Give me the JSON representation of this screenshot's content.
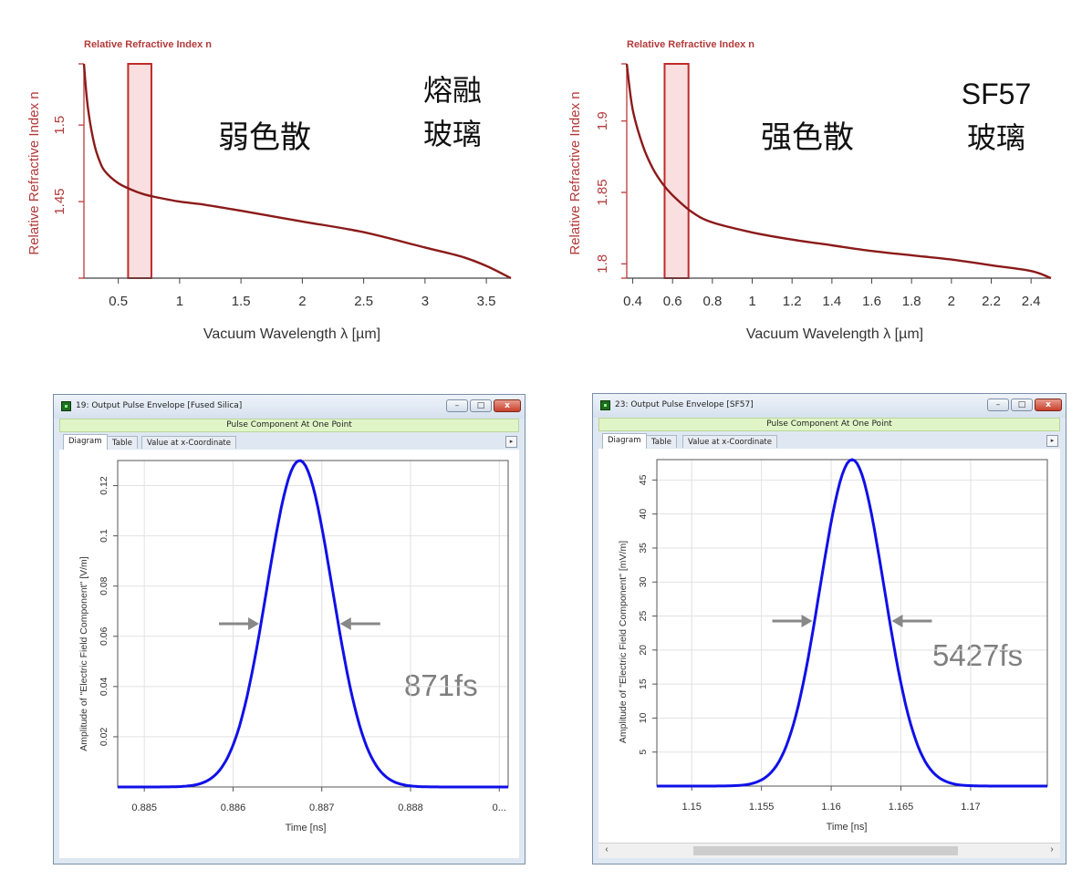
{
  "panels": {
    "top_left": {
      "chart_title": "Relative Refractive Index n",
      "ylabel": "Relative Refractive Index n",
      "xlabel": "Vacuum Wavelength λ [µm]",
      "annotation": "弱色散",
      "material_line1": "熔融",
      "material_line2": "玻璃"
    },
    "top_right": {
      "chart_title": "Relative Refractive Index n",
      "ylabel": "Relative Refractive Index n",
      "xlabel": "Vacuum Wavelength λ [µm]",
      "annotation": "强色散",
      "material_line1": "SF57",
      "material_line2": "玻璃"
    },
    "bottom_left": {
      "window_title": "19: Output Pulse Envelope [Fused Silica]",
      "subtitle": "Pulse Component At One Point",
      "tabs": [
        "Diagram",
        "Table",
        "Value at x-Coordinate"
      ],
      "ylabel": "Amplitude of \"Electric Field Component\" [V/m]",
      "xlabel": "Time [ns]",
      "width_label": "871fs"
    },
    "bottom_right": {
      "window_title": "23: Output Pulse Envelope [SF57]",
      "subtitle": "Pulse Component At One Point",
      "tabs": [
        "Diagram",
        "Table",
        "Value at x-Coordinate"
      ],
      "ylabel": "Amplitude of \"Electric Field Component\" [mV/m]",
      "xlabel": "Time [ns]",
      "width_label": "5427fs"
    }
  },
  "window_buttons": {
    "minimize": "–",
    "maximize": "□",
    "close": "x"
  },
  "scroll_arrows": {
    "left": "‹",
    "right": "›"
  },
  "tab_arrow": "▸",
  "colors": {
    "dispersion_curve": "#8b1a1a",
    "highlight": "#f5c9c9",
    "pulse": "#1010e8",
    "arrow": "#888888",
    "axis_text_red": "#b33a3a"
  },
  "chart_data": [
    {
      "type": "line",
      "name": "fused-silica-dispersion",
      "title": "Relative Refractive Index n",
      "xlabel": "Vacuum Wavelength λ [µm]",
      "ylabel": "Relative Refractive Index n",
      "xlim": [
        0.22,
        3.7
      ],
      "ylim": [
        1.4,
        1.54
      ],
      "xticks": [
        0.5,
        1,
        1.5,
        2,
        2.5,
        3,
        3.5
      ],
      "xtick_labels": [
        "0.5",
        "1",
        "1.5",
        "2",
        "2.5",
        "3",
        "3.5"
      ],
      "yticks": [
        1.45,
        1.5
      ],
      "ytick_labels": [
        "1.45",
        "1.5"
      ],
      "highlight_band": [
        0.58,
        0.77
      ],
      "x": [
        0.22,
        0.25,
        0.3,
        0.35,
        0.4,
        0.5,
        0.6,
        0.7,
        0.8,
        1.0,
        1.2,
        1.5,
        2.0,
        2.5,
        3.0,
        3.3,
        3.5,
        3.7
      ],
      "y": [
        1.54,
        1.513,
        1.489,
        1.476,
        1.469,
        1.462,
        1.458,
        1.455,
        1.453,
        1.45,
        1.448,
        1.444,
        1.437,
        1.43,
        1.42,
        1.414,
        1.408,
        1.4
      ],
      "grid": false
    },
    {
      "type": "line",
      "name": "sf57-dispersion",
      "title": "Relative Refractive Index n",
      "xlabel": "Vacuum Wavelength λ [µm]",
      "ylabel": "Relative Refractive Index n",
      "xlim": [
        0.37,
        2.5
      ],
      "ylim": [
        1.79,
        1.94
      ],
      "xticks": [
        0.4,
        0.6,
        0.8,
        1,
        1.2,
        1.4,
        1.6,
        1.8,
        2,
        2.2,
        2.4
      ],
      "xtick_labels": [
        "0.4",
        "0.6",
        "0.8",
        "1",
        "1.2",
        "1.4",
        "1.6",
        "1.8",
        "2",
        "2.2",
        "2.4"
      ],
      "yticks": [
        1.8,
        1.85,
        1.9
      ],
      "ytick_labels": [
        "1.8",
        "1.85",
        "1.9"
      ],
      "highlight_band": [
        0.56,
        0.68
      ],
      "x": [
        0.37,
        0.4,
        0.45,
        0.5,
        0.55,
        0.6,
        0.7,
        0.8,
        1.0,
        1.2,
        1.4,
        1.6,
        1.8,
        2.0,
        2.2,
        2.4,
        2.5
      ],
      "y": [
        1.94,
        1.908,
        1.883,
        1.867,
        1.856,
        1.848,
        1.836,
        1.829,
        1.822,
        1.817,
        1.813,
        1.809,
        1.806,
        1.803,
        1.799,
        1.795,
        1.79
      ],
      "grid": false
    },
    {
      "type": "line",
      "name": "fused-silica-pulse",
      "xlabel": "Time [ns]",
      "ylabel": "Amplitude of \"Electric Field Component\" [V/m]",
      "xlim": [
        0.8847,
        0.8891
      ],
      "ylim": [
        0,
        0.13
      ],
      "xticks": [
        0.885,
        0.886,
        0.887,
        0.888,
        0.889
      ],
      "xtick_labels": [
        "0.885",
        "0.886",
        "0.887",
        "0.888",
        "0..."
      ],
      "yticks": [
        0.02,
        0.04,
        0.06,
        0.08,
        0.1,
        0.12
      ],
      "ytick_labels": [
        "0.02",
        "0.04",
        "0.06",
        "0.08",
        "0.1",
        "0.12"
      ],
      "peak_x": 0.88675,
      "peak_y": 0.13,
      "fwhm_fs": 871,
      "grid": true
    },
    {
      "type": "line",
      "name": "sf57-pulse",
      "xlabel": "Time [ns]",
      "ylabel": "Amplitude of \"Electric Field Component\" [mV/m]",
      "xlim": [
        1.1475,
        1.1755
      ],
      "ylim": [
        0,
        48
      ],
      "xticks": [
        1.15,
        1.155,
        1.16,
        1.165,
        1.17
      ],
      "xtick_labels": [
        "1.15",
        "1.155",
        "1.16",
        "1.165",
        "1.17"
      ],
      "yticks": [
        5,
        10,
        15,
        20,
        25,
        30,
        35,
        40,
        45
      ],
      "ytick_labels": [
        "5",
        "10",
        "15",
        "20",
        "25",
        "30",
        "35",
        "40",
        "45"
      ],
      "peak_x": 1.1615,
      "peak_y": 48,
      "fwhm_fs": 5427,
      "grid": true
    }
  ]
}
